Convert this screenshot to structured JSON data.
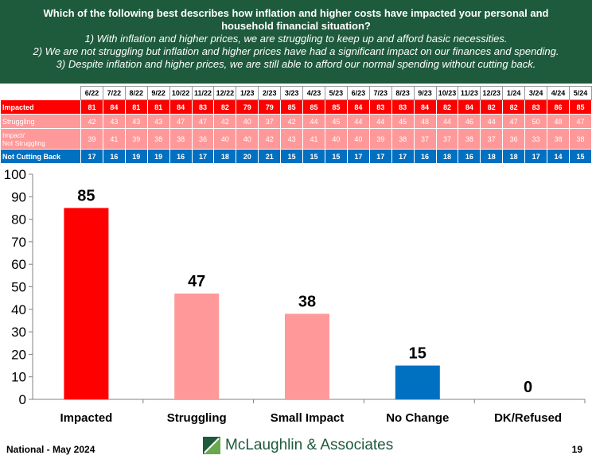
{
  "header": {
    "question": "Which of the following best describes how inflation and higher costs have impacted your personal and household financial situation?",
    "options": [
      "1) With inflation and higher prices, we are struggling to keep up and afford basic necessities.",
      "2) We are not struggling but inflation and higher prices have had a significant impact on our finances and spending.",
      "3) Despite inflation and higher prices, we are still able to afford our normal spending without cutting back."
    ]
  },
  "tracking": {
    "dates": [
      "6/22",
      "7/22",
      "8/22",
      "9/22",
      "10/22",
      "11/22",
      "12/22",
      "1/23",
      "2/23",
      "3/23",
      "4/23",
      "5/23",
      "6/23",
      "7/23",
      "8/23",
      "9/23",
      "10/23",
      "11/23",
      "12/23",
      "1/24",
      "3/24",
      "4/24",
      "5/24"
    ],
    "rows": [
      {
        "label": "Impacted",
        "values": [
          "81",
          "84",
          "81",
          "81",
          "84",
          "83",
          "82",
          "79",
          "79",
          "85",
          "85",
          "85",
          "84",
          "83",
          "83",
          "84",
          "82",
          "84",
          "82",
          "82",
          "83",
          "86",
          "85"
        ]
      },
      {
        "label": "Struggling",
        "values": [
          "42",
          "43",
          "43",
          "43",
          "47",
          "47",
          "42",
          "40",
          "37",
          "42",
          "44",
          "45",
          "44",
          "44",
          "45",
          "48",
          "44",
          "46",
          "44",
          "47",
          "50",
          "48",
          "47"
        ]
      },
      {
        "label": "Impact/ Not Struggling",
        "label_line1": "Impact/",
        "label_line2": "Not Struggling",
        "values": [
          "39",
          "41",
          "39",
          "38",
          "38",
          "36",
          "40",
          "40",
          "42",
          "43",
          "41",
          "40",
          "40",
          "39",
          "38",
          "37",
          "37",
          "38",
          "37",
          "36",
          "33",
          "38",
          "38"
        ]
      },
      {
        "label": "Not Cutting Back",
        "values": [
          "17",
          "16",
          "19",
          "19",
          "16",
          "17",
          "18",
          "20",
          "21",
          "15",
          "15",
          "15",
          "17",
          "17",
          "17",
          "16",
          "18",
          "16",
          "18",
          "18",
          "17",
          "14",
          "15"
        ]
      }
    ]
  },
  "chart_data": {
    "type": "bar",
    "categories": [
      "Impacted",
      "Struggling",
      "Small Impact",
      "No Change",
      "DK/Refused"
    ],
    "values": [
      85,
      47,
      38,
      15,
      0
    ],
    "colors": [
      "#ff0000",
      "#ff9999",
      "#ff9999",
      "#0070c0",
      "#0070c0"
    ],
    "ylim": [
      0,
      100
    ],
    "yticks": [
      0,
      10,
      20,
      30,
      40,
      50,
      60,
      70,
      80,
      90,
      100
    ],
    "grid": false,
    "legend": "none"
  },
  "footer": {
    "left": "National - May 2024",
    "logo_text": "McLaughlin & Associates",
    "page": "19"
  }
}
